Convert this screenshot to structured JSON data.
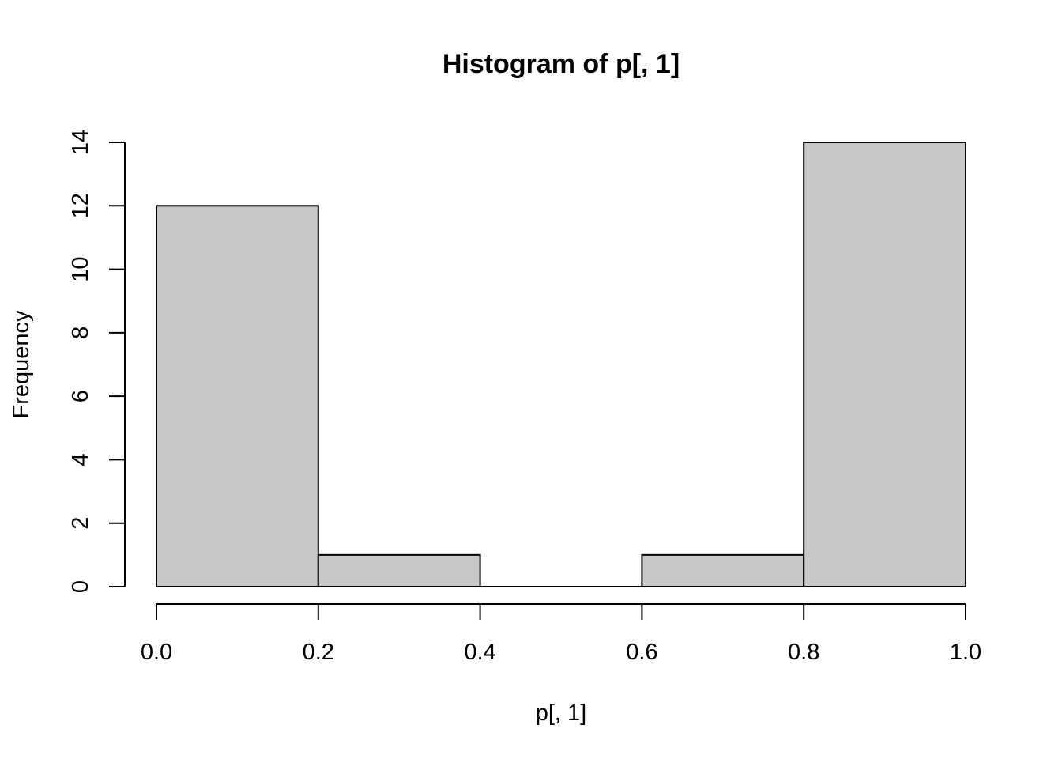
{
  "chart_data": {
    "type": "bar",
    "subtype": "histogram",
    "title": "Histogram of p[, 1]",
    "xlabel": "p[, 1]",
    "ylabel": "Frequency",
    "bins": [
      {
        "start": 0.0,
        "end": 0.2,
        "count": 12
      },
      {
        "start": 0.2,
        "end": 0.4,
        "count": 1
      },
      {
        "start": 0.4,
        "end": 0.6,
        "count": 0
      },
      {
        "start": 0.6,
        "end": 0.8,
        "count": 1
      },
      {
        "start": 0.8,
        "end": 1.0,
        "count": 14
      }
    ],
    "xlim": [
      0.0,
      1.0
    ],
    "ylim": [
      0,
      14
    ],
    "x_ticks": [
      "0.0",
      "0.2",
      "0.4",
      "0.6",
      "0.8",
      "1.0"
    ],
    "y_ticks": [
      "0",
      "2",
      "4",
      "6",
      "8",
      "10",
      "12",
      "14"
    ],
    "bar_color": "#c8c8c8",
    "grid": false
  }
}
